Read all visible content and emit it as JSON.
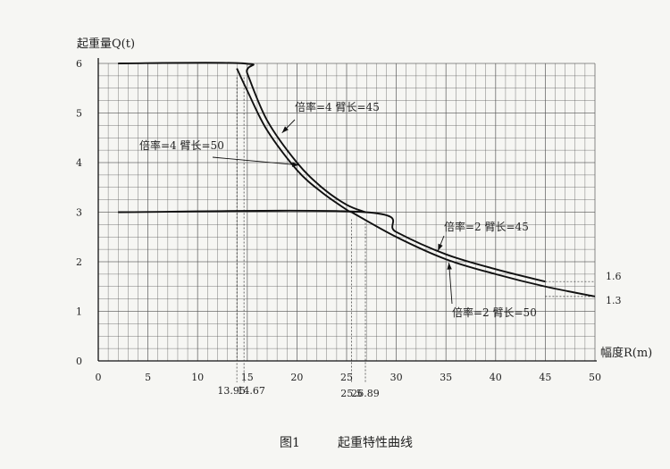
{
  "chart_data": {
    "type": "line",
    "title": "",
    "ylabel": "起重量Q(t)",
    "xlabel": "幅度R(m)",
    "xlim": [
      0,
      50
    ],
    "ylim": [
      0,
      6
    ],
    "x_ticks": [
      "0",
      "5",
      "10",
      "15",
      "20",
      "25",
      "30",
      "35",
      "40",
      "45",
      "50"
    ],
    "y_ticks": [
      "0",
      "1",
      "2",
      "3",
      "4",
      "5",
      "6"
    ],
    "grid": true,
    "series": [
      {
        "name": "倍率=4  臂长=45",
        "x": [
          2,
          14.67,
          15,
          17,
          20,
          22.5,
          25,
          26.89
        ],
        "y": [
          6,
          6,
          5.8,
          4.85,
          4.0,
          3.5,
          3.15,
          3.0
        ]
      },
      {
        "name": "倍率=4  臂长=50",
        "x": [
          13.95,
          15,
          17,
          20,
          22.5,
          25,
          25.5
        ],
        "y": [
          5.9,
          5.45,
          4.65,
          3.85,
          3.4,
          3.05,
          3.0
        ]
      },
      {
        "name": "倍率=2  臂长=45",
        "x": [
          2,
          26.89,
          30,
          35,
          40,
          45
        ],
        "y": [
          3,
          3.0,
          2.6,
          2.15,
          1.85,
          1.6
        ]
      },
      {
        "name": "倍率=2  臂长=50",
        "x": [
          25.5,
          30,
          35,
          40,
          45,
          50
        ],
        "y": [
          3.0,
          2.5,
          2.05,
          1.75,
          1.5,
          1.3
        ]
      }
    ],
    "reference_lines": [
      {
        "x": 13.95,
        "label": "13.95"
      },
      {
        "x": 14.67,
        "label": "14.67"
      },
      {
        "x": 25.5,
        "label": "25.5"
      },
      {
        "x": 26.89,
        "label": "26.89"
      }
    ],
    "end_labels": [
      {
        "y": 1.6,
        "label": "1.6"
      },
      {
        "y": 1.3,
        "label": "1.3"
      }
    ],
    "callouts": [
      {
        "text": "倍率=4  臂长=45",
        "target": [
          18.5,
          4.6
        ]
      },
      {
        "text": "倍率=4  臂长=50",
        "target": [
          20.2,
          3.95
        ]
      },
      {
        "text": "倍率=2  臂长=45",
        "target": [
          34.2,
          2.22
        ]
      },
      {
        "text": "倍率=2  臂长=50",
        "target": [
          35.3,
          1.98
        ]
      }
    ],
    "caption_fig": "图1",
    "caption_text": "起重特性曲线"
  }
}
